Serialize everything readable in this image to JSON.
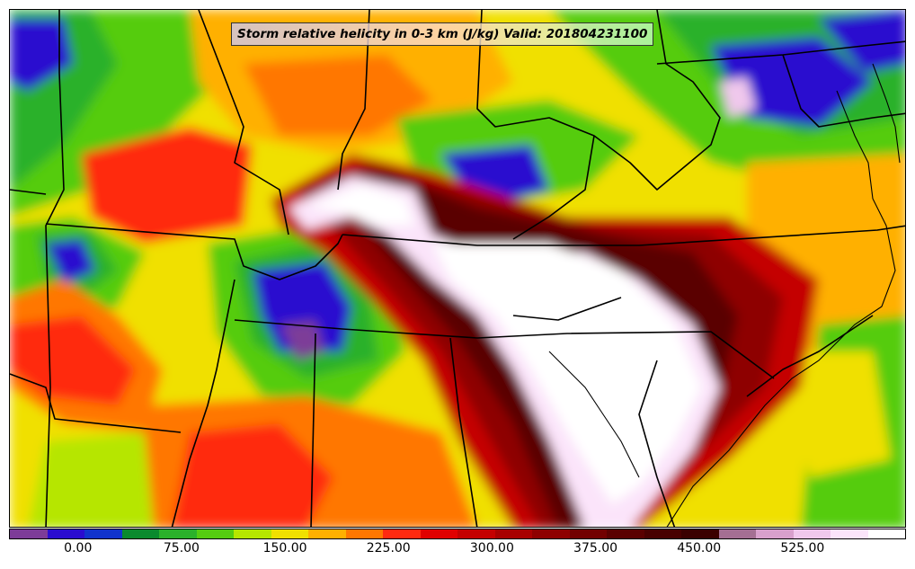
{
  "title": "Storm relative helicity in 0-3 km (J/kg) Valid: 201804231100",
  "colorbar": {
    "colors": [
      "#7d3c98",
      "#2a0ccf",
      "#1133cc",
      "#0a8a2e",
      "#2bb12b",
      "#55cc11",
      "#b6e600",
      "#f0e000",
      "#ffb000",
      "#ff7700",
      "#ff2a10",
      "#e00000",
      "#c40000",
      "#a80000",
      "#8e0000",
      "#720000",
      "#5a0000",
      "#480000",
      "#3a0000",
      "#a46f93",
      "#d8a0cc",
      "#f0c8ec",
      "#fbe4fa",
      "#ffffff"
    ],
    "tick_labels": [
      "0.00",
      "75.00",
      "150.00",
      "225.00",
      "300.00",
      "375.00",
      "450.00",
      "525.00"
    ],
    "tick_values": [
      0,
      75,
      150,
      225,
      300,
      375,
      450,
      525
    ],
    "range": [
      -50,
      600
    ]
  }
}
